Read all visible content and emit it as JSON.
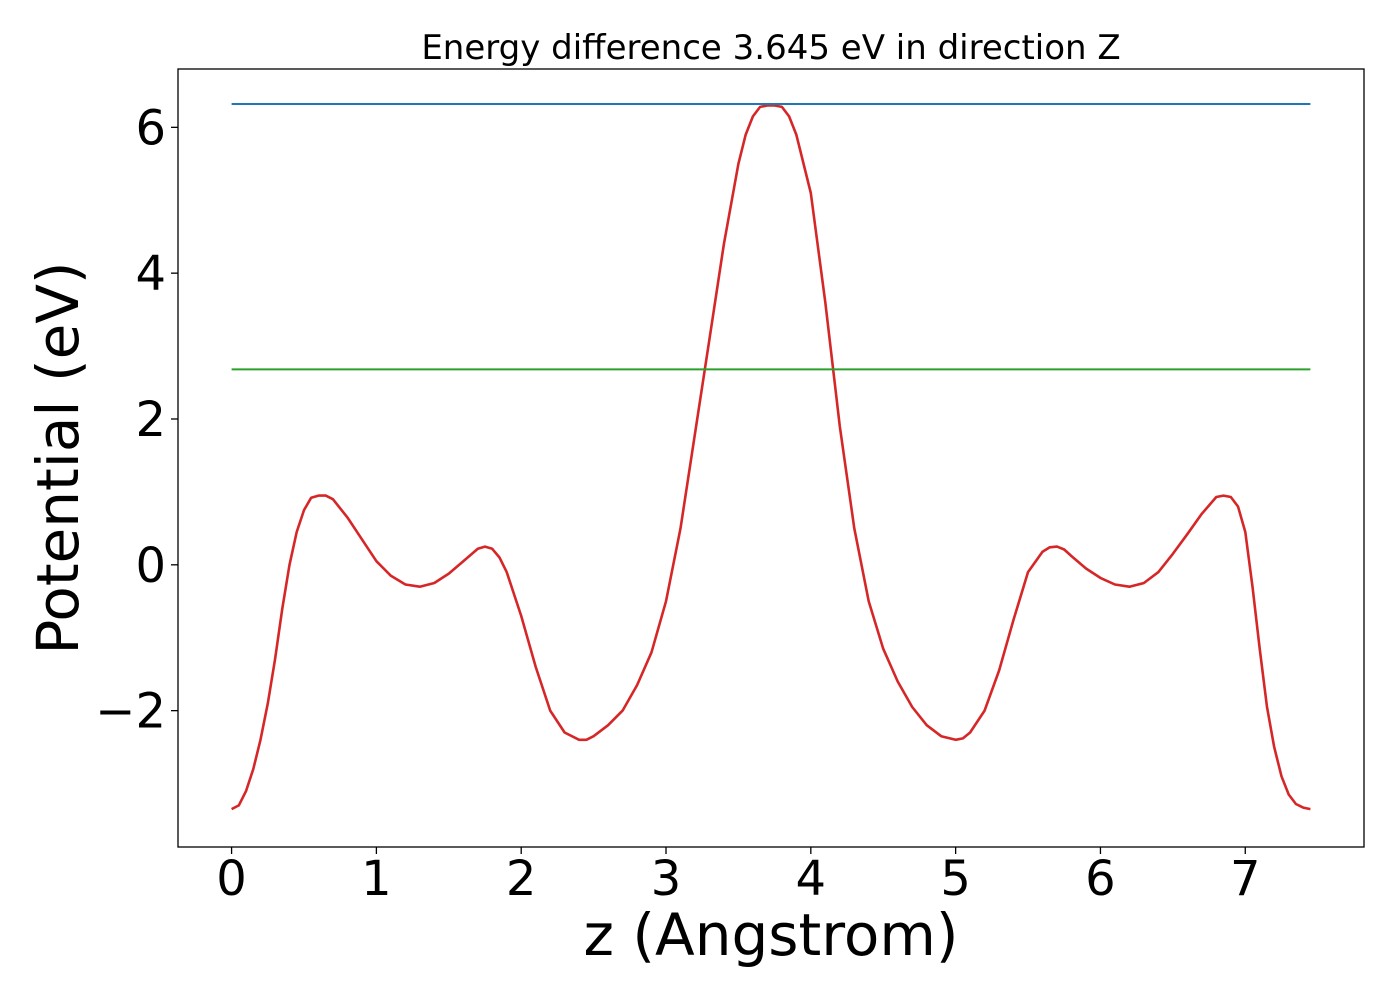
{
  "chart_data": {
    "type": "line",
    "title": "Energy difference 3.645 eV in direction Z",
    "xlabel": "z (Angstrom)",
    "ylabel": "Potential (eV)",
    "xlim": [
      -0.37,
      7.82
    ],
    "ylim": [
      -3.87,
      6.8
    ],
    "xticks": [
      0,
      1,
      2,
      3,
      4,
      5,
      6,
      7
    ],
    "xtick_labels": [
      "0",
      "1",
      "2",
      "3",
      "4",
      "5",
      "6",
      "7"
    ],
    "yticks": [
      -2,
      0,
      2,
      4,
      6
    ],
    "ytick_labels": [
      "−2",
      "0",
      "2",
      "4",
      "6"
    ],
    "grid": false,
    "series": [
      {
        "color": "#d62728",
        "x": [
          0.0,
          0.05,
          0.1,
          0.15,
          0.2,
          0.25,
          0.3,
          0.35,
          0.4,
          0.45,
          0.5,
          0.55,
          0.6,
          0.65,
          0.7,
          0.8,
          0.9,
          1.0,
          1.1,
          1.2,
          1.3,
          1.4,
          1.5,
          1.6,
          1.7,
          1.75,
          1.8,
          1.85,
          1.9,
          2.0,
          2.1,
          2.2,
          2.3,
          2.4,
          2.45,
          2.5,
          2.6,
          2.7,
          2.8,
          2.9,
          3.0,
          3.1,
          3.2,
          3.3,
          3.4,
          3.5,
          3.55,
          3.6,
          3.65,
          3.7,
          3.75,
          3.8,
          3.85,
          3.9,
          4.0,
          4.1,
          4.2,
          4.3,
          4.4,
          4.5,
          4.6,
          4.7,
          4.8,
          4.9,
          5.0,
          5.05,
          5.1,
          5.2,
          5.3,
          5.4,
          5.5,
          5.6,
          5.65,
          5.7,
          5.75,
          5.8,
          5.9,
          6.0,
          6.1,
          6.2,
          6.3,
          6.4,
          6.5,
          6.6,
          6.7,
          6.8,
          6.85,
          6.9,
          6.95,
          7.0,
          7.05,
          7.1,
          7.15,
          7.2,
          7.25,
          7.3,
          7.35,
          7.4,
          7.45
        ],
        "y": [
          -3.35,
          -3.3,
          -3.1,
          -2.8,
          -2.4,
          -1.9,
          -1.3,
          -0.6,
          0.0,
          0.45,
          0.75,
          0.92,
          0.95,
          0.95,
          0.9,
          0.65,
          0.35,
          0.05,
          -0.15,
          -0.27,
          -0.3,
          -0.25,
          -0.12,
          0.05,
          0.22,
          0.25,
          0.22,
          0.1,
          -0.1,
          -0.7,
          -1.4,
          -2.0,
          -2.3,
          -2.4,
          -2.4,
          -2.35,
          -2.2,
          -2.0,
          -1.65,
          -1.2,
          -0.5,
          0.5,
          1.8,
          3.1,
          4.4,
          5.5,
          5.9,
          6.15,
          6.28,
          6.3,
          6.3,
          6.28,
          6.15,
          5.9,
          5.1,
          3.6,
          1.9,
          0.5,
          -0.5,
          -1.15,
          -1.6,
          -1.95,
          -2.2,
          -2.35,
          -2.4,
          -2.38,
          -2.3,
          -2.0,
          -1.45,
          -0.75,
          -0.1,
          0.18,
          0.24,
          0.25,
          0.21,
          0.12,
          -0.05,
          -0.18,
          -0.27,
          -0.3,
          -0.25,
          -0.1,
          0.15,
          0.42,
          0.7,
          0.93,
          0.95,
          0.93,
          0.8,
          0.45,
          -0.3,
          -1.15,
          -1.95,
          -2.5,
          -2.9,
          -3.15,
          -3.28,
          -3.33,
          -3.35
        ]
      },
      {
        "color": "#1f77b4",
        "x": [
          0.0,
          7.45
        ],
        "y": [
          6.32,
          6.32
        ]
      },
      {
        "color": "#2ca02c",
        "x": [
          0.0,
          7.45
        ],
        "y": [
          2.68,
          2.68
        ]
      }
    ]
  }
}
